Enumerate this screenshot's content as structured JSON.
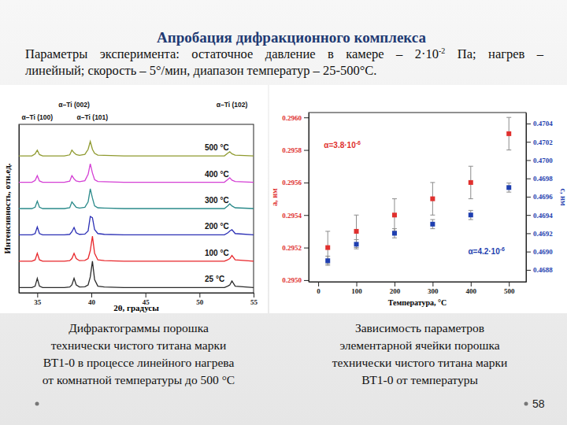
{
  "slide": {
    "title": "Апробация дифракционного комплекса",
    "subtitle_lines": [
      [
        {
          "text": "Параметры эксперимента: остаточное давление в камере – 2·10"
        },
        {
          "text": "-2",
          "sup": true
        },
        {
          "text": " Па; нагрев –"
        }
      ],
      [
        {
          "text": "линейный; скорость – 5°/мин, диапазон температур – 25-500°С."
        }
      ]
    ],
    "captions": [
      [
        "Дифрактограммы порошка",
        "технически чистого титана марки",
        "ВТ1-0 в процессе линейного нагрева",
        "от комнатной температуры до 500 °С"
      ],
      [
        "Зависимость параметров",
        "элементарной ячейки порошка",
        "технически чистого титана марки",
        "ВТ1-0 от температуры"
      ]
    ],
    "page_number": "58"
  },
  "chart_data": [
    {
      "type": "line",
      "x_label": "2θ, градусы",
      "y_label": "Интенсивность, отн.ед.",
      "x": [
        33.3,
        34.5,
        34.8,
        35.0,
        35.2,
        35.5,
        37.5,
        38.0,
        38.2,
        38.4,
        38.6,
        38.9,
        39.4,
        39.7,
        39.9,
        40.1,
        40.3,
        40.6,
        41.2,
        43,
        45,
        47,
        49,
        51,
        52.3,
        52.6,
        52.8,
        53.0,
        53.3,
        55
      ],
      "series": [
        {
          "name": "25 °C",
          "color": "#2b2b2b",
          "values": [
            0.2,
            0.2,
            0.25,
            0.55,
            0.25,
            0.2,
            0.2,
            0.22,
            0.3,
            0.55,
            0.3,
            0.22,
            0.23,
            0.3,
            0.6,
            1.2,
            0.5,
            0.25,
            0.22,
            0.2,
            0.2,
            0.2,
            0.2,
            0.2,
            0.2,
            0.25,
            0.3,
            0.45,
            0.25,
            0.2
          ]
        },
        {
          "name": "100 °C",
          "color": "#e8262a",
          "values": [
            1.2,
            1.2,
            1.25,
            1.5,
            1.25,
            1.2,
            1.2,
            1.22,
            1.3,
            1.5,
            1.3,
            1.22,
            1.23,
            1.3,
            1.6,
            2.15,
            1.5,
            1.25,
            1.22,
            1.2,
            1.2,
            1.2,
            1.2,
            1.2,
            1.2,
            1.25,
            1.3,
            1.42,
            1.25,
            1.2
          ]
        },
        {
          "name": "200 °C",
          "color": "#2b2fb5",
          "values": [
            2.2,
            2.2,
            2.25,
            2.5,
            2.25,
            2.2,
            2.2,
            2.22,
            2.32,
            2.48,
            2.28,
            2.22,
            2.23,
            2.35,
            2.9,
            2.85,
            2.4,
            2.25,
            2.22,
            2.2,
            2.2,
            2.2,
            2.2,
            2.2,
            2.2,
            2.27,
            2.35,
            2.4,
            2.25,
            2.2
          ]
        },
        {
          "name": "300 °C",
          "color": "#2a8a8a",
          "values": [
            3.2,
            3.2,
            3.25,
            3.48,
            3.25,
            3.2,
            3.2,
            3.23,
            3.45,
            3.35,
            3.25,
            3.22,
            3.25,
            3.45,
            3.95,
            3.6,
            3.3,
            3.23,
            3.22,
            3.2,
            3.2,
            3.2,
            3.2,
            3.2,
            3.2,
            3.3,
            3.38,
            3.3,
            3.23,
            3.2
          ]
        },
        {
          "name": "400 °C",
          "color": "#d43fd4",
          "values": [
            4.2,
            4.2,
            4.27,
            4.45,
            4.25,
            4.2,
            4.2,
            4.24,
            4.45,
            4.33,
            4.25,
            4.22,
            4.26,
            4.5,
            4.9,
            4.55,
            4.3,
            4.23,
            4.22,
            4.2,
            4.2,
            4.2,
            4.2,
            4.2,
            4.2,
            4.3,
            4.37,
            4.28,
            4.23,
            4.2
          ]
        },
        {
          "name": "500 °C",
          "color": "#8f9a2f",
          "values": [
            5.2,
            5.2,
            5.28,
            5.42,
            5.25,
            5.2,
            5.2,
            5.24,
            5.42,
            5.32,
            5.25,
            5.22,
            5.26,
            5.45,
            5.75,
            5.45,
            5.3,
            5.23,
            5.22,
            5.2,
            5.2,
            5.2,
            5.2,
            5.2,
            5.2,
            5.3,
            5.36,
            5.28,
            5.23,
            5.2
          ]
        }
      ],
      "xlim": [
        33.3,
        55
      ],
      "xticks": [
        35,
        40,
        45,
        50,
        55
      ],
      "ylim": [
        0,
        6.4
      ],
      "tick_labels": "x",
      "annotations": [
        {
          "text": "α–Ti (100)",
          "x": 35.0
        },
        {
          "text": "α–Ti (002)",
          "x": 38.4
        },
        {
          "text": "α–Ti (101)",
          "x": 40.1
        },
        {
          "text": "α–Ti (102)",
          "x": 53.0
        }
      ]
    },
    {
      "type": "scatter",
      "x_label": "Температура, °C",
      "y_label": "a, нм",
      "y2_label": "c, нм",
      "x": [
        25,
        100,
        200,
        300,
        400,
        500
      ],
      "series": [
        {
          "color": "#e0302e",
          "marker": "square",
          "values": [
            0.2952,
            0.2953,
            0.2954,
            0.2955,
            0.2956,
            0.2959
          ],
          "errors": [
            0.0001,
            0.0001,
            0.0001,
            0.0001,
            0.0001,
            0.0001
          ]
        },
        {
          "color": "#1f3fb0",
          "marker": "square",
          "axis": "y2",
          "values": [
            0.4689,
            0.46908,
            0.4692,
            0.4693,
            0.4694,
            0.4697
          ],
          "errors": [
            5e-05,
            5e-05,
            5e-05,
            5e-05,
            5e-05,
            5e-05
          ]
        }
      ],
      "xlim": [
        -25,
        545
      ],
      "xticks": [
        0,
        100,
        200,
        300,
        400,
        500
      ],
      "ylim": [
        0.29499,
        0.29603
      ],
      "yticks": [
        {
          "value": 0.295,
          "label": "0.2950"
        },
        0.2952,
        0.2954,
        0.2956,
        0.2958,
        {
          "value": 0.296,
          "label": "0.2960"
        }
      ],
      "y2lim": [
        0.46867,
        0.47052
      ],
      "y2ticks": [
        0.4688,
        {
          "value": 0.469,
          "label": "0.4690"
        },
        0.4692,
        0.4694,
        0.4696,
        0.4698,
        {
          "value": 0.47,
          "label": "0.4700"
        },
        0.4702,
        0.4704
      ],
      "annotations": [
        {
          "text": "α=3.8·10",
          "sup": "-6",
          "x": 15,
          "y": 0.29581
        },
        {
          "text": "α=4.2·10",
          "sup": "-6",
          "x": 393,
          "y": 0.46897,
          "axis": "y2"
        }
      ]
    }
  ]
}
